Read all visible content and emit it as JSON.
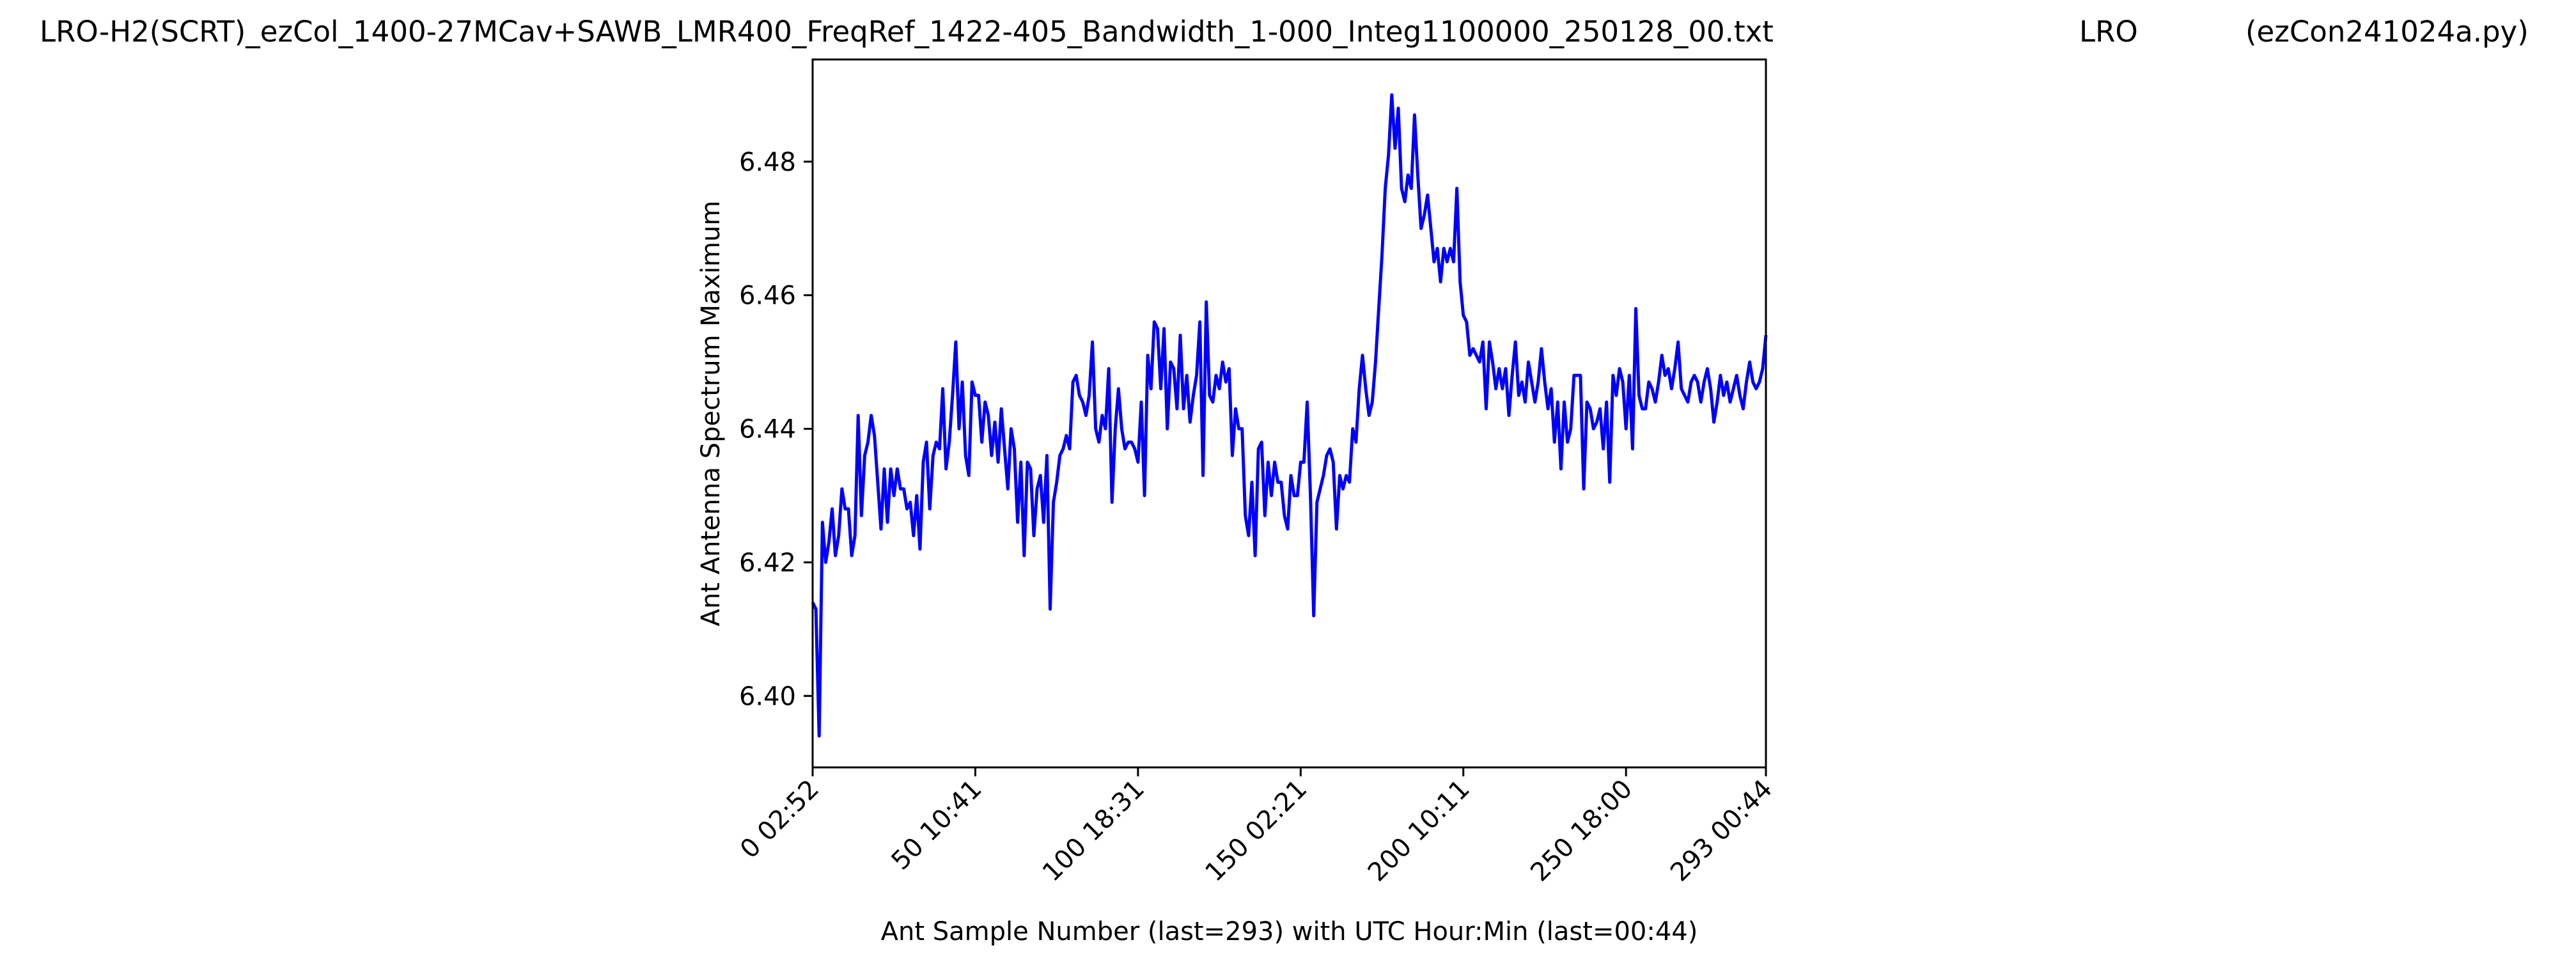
{
  "titles": {
    "file": "LRO-H2(SCRT)_ezCol_1400-27MCav+SAWB_LMR400_FreqRef_1422-405_Bandwidth_1-000_Integ1100000_250128_00.txt",
    "site": "LRO",
    "program": "(ezCon241024a.py)"
  },
  "colors": {
    "line": "#0000ff",
    "axes": "#000000",
    "background": "#ffffff"
  },
  "chart_data": {
    "type": "line",
    "xlabel": "Ant Sample Number (last=293) with UTC Hour:Min (last=00:44)",
    "ylabel": "Ant Antenna Spectrum Maximum",
    "xlim": [
      0,
      293
    ],
    "ylim": [
      6.3893,
      6.4953
    ],
    "x_ticks": [
      {
        "value": 0,
        "label": "0  02:52"
      },
      {
        "value": 50,
        "label": "50  10:41"
      },
      {
        "value": 100,
        "label": "100  18:31"
      },
      {
        "value": 150,
        "label": "150  02:21"
      },
      {
        "value": 200,
        "label": "200  10:11"
      },
      {
        "value": 250,
        "label": "250  18:00"
      },
      {
        "value": 293,
        "label": "293  00:44"
      }
    ],
    "y_ticks": [
      {
        "value": 6.4,
        "label": "6.40"
      },
      {
        "value": 6.42,
        "label": "6.42"
      },
      {
        "value": 6.44,
        "label": "6.44"
      },
      {
        "value": 6.46,
        "label": "6.46"
      },
      {
        "value": 6.48,
        "label": "6.48"
      }
    ],
    "grid": false,
    "legend": "none",
    "series": [
      {
        "color": "#0000ff",
        "points": [
          [
            0,
            6.414
          ],
          [
            1,
            6.413
          ],
          [
            2,
            6.394
          ],
          [
            3,
            6.426
          ],
          [
            4,
            6.42
          ],
          [
            5,
            6.423
          ],
          [
            6,
            6.428
          ],
          [
            7,
            6.421
          ],
          [
            8,
            6.424
          ],
          [
            9,
            6.431
          ],
          [
            10,
            6.428
          ],
          [
            11,
            6.428
          ],
          [
            12,
            6.421
          ],
          [
            13,
            6.424
          ],
          [
            14,
            6.442
          ],
          [
            15,
            6.427
          ],
          [
            16,
            6.436
          ],
          [
            17,
            6.438
          ],
          [
            18,
            6.442
          ],
          [
            19,
            6.439
          ],
          [
            20,
            6.432
          ],
          [
            21,
            6.425
          ],
          [
            22,
            6.434
          ],
          [
            23,
            6.426
          ],
          [
            24,
            6.434
          ],
          [
            25,
            6.43
          ],
          [
            26,
            6.434
          ],
          [
            27,
            6.431
          ],
          [
            28,
            6.431
          ],
          [
            29,
            6.428
          ],
          [
            30,
            6.429
          ],
          [
            31,
            6.424
          ],
          [
            32,
            6.43
          ],
          [
            33,
            6.422
          ],
          [
            34,
            6.435
          ],
          [
            35,
            6.438
          ],
          [
            36,
            6.428
          ],
          [
            37,
            6.436
          ],
          [
            38,
            6.438
          ],
          [
            39,
            6.437
          ],
          [
            40,
            6.446
          ],
          [
            41,
            6.434
          ],
          [
            42,
            6.438
          ],
          [
            43,
            6.445
          ],
          [
            44,
            6.453
          ],
          [
            45,
            6.44
          ],
          [
            46,
            6.447
          ],
          [
            47,
            6.436
          ],
          [
            48,
            6.433
          ],
          [
            49,
            6.447
          ],
          [
            50,
            6.445
          ],
          [
            51,
            6.445
          ],
          [
            52,
            6.438
          ],
          [
            53,
            6.444
          ],
          [
            54,
            6.442
          ],
          [
            55,
            6.436
          ],
          [
            56,
            6.441
          ],
          [
            57,
            6.435
          ],
          [
            58,
            6.443
          ],
          [
            59,
            6.437
          ],
          [
            60,
            6.431
          ],
          [
            61,
            6.44
          ],
          [
            62,
            6.437
          ],
          [
            63,
            6.426
          ],
          [
            64,
            6.435
          ],
          [
            65,
            6.421
          ],
          [
            66,
            6.435
          ],
          [
            67,
            6.434
          ],
          [
            68,
            6.424
          ],
          [
            69,
            6.431
          ],
          [
            70,
            6.433
          ],
          [
            71,
            6.426
          ],
          [
            72,
            6.436
          ],
          [
            73,
            6.413
          ],
          [
            74,
            6.429
          ],
          [
            75,
            6.432
          ],
          [
            76,
            6.436
          ],
          [
            77,
            6.437
          ],
          [
            78,
            6.439
          ],
          [
            79,
            6.437
          ],
          [
            80,
            6.447
          ],
          [
            81,
            6.448
          ],
          [
            82,
            6.445
          ],
          [
            83,
            6.444
          ],
          [
            84,
            6.442
          ],
          [
            85,
            6.445
          ],
          [
            86,
            6.453
          ],
          [
            87,
            6.44
          ],
          [
            88,
            6.438
          ],
          [
            89,
            6.442
          ],
          [
            90,
            6.44
          ],
          [
            91,
            6.449
          ],
          [
            92,
            6.429
          ],
          [
            93,
            6.44
          ],
          [
            94,
            6.446
          ],
          [
            95,
            6.44
          ],
          [
            96,
            6.437
          ],
          [
            97,
            6.438
          ],
          [
            98,
            6.438
          ],
          [
            99,
            6.437
          ],
          [
            100,
            6.435
          ],
          [
            101,
            6.444
          ],
          [
            102,
            6.43
          ],
          [
            103,
            6.451
          ],
          [
            104,
            6.446
          ],
          [
            105,
            6.456
          ],
          [
            106,
            6.455
          ],
          [
            107,
            6.446
          ],
          [
            108,
            6.455
          ],
          [
            109,
            6.44
          ],
          [
            110,
            6.45
          ],
          [
            111,
            6.449
          ],
          [
            112,
            6.443
          ],
          [
            113,
            6.454
          ],
          [
            114,
            6.443
          ],
          [
            115,
            6.448
          ],
          [
            116,
            6.441
          ],
          [
            117,
            6.445
          ],
          [
            118,
            6.448
          ],
          [
            119,
            6.456
          ],
          [
            120,
            6.433
          ],
          [
            121,
            6.459
          ],
          [
            122,
            6.445
          ],
          [
            123,
            6.444
          ],
          [
            124,
            6.448
          ],
          [
            125,
            6.446
          ],
          [
            126,
            6.45
          ],
          [
            127,
            6.447
          ],
          [
            128,
            6.449
          ],
          [
            129,
            6.436
          ],
          [
            130,
            6.443
          ],
          [
            131,
            6.44
          ],
          [
            132,
            6.44
          ],
          [
            133,
            6.427
          ],
          [
            134,
            6.424
          ],
          [
            135,
            6.432
          ],
          [
            136,
            6.421
          ],
          [
            137,
            6.437
          ],
          [
            138,
            6.438
          ],
          [
            139,
            6.427
          ],
          [
            140,
            6.435
          ],
          [
            141,
            6.43
          ],
          [
            142,
            6.435
          ],
          [
            143,
            6.432
          ],
          [
            144,
            6.432
          ],
          [
            145,
            6.427
          ],
          [
            146,
            6.425
          ],
          [
            147,
            6.433
          ],
          [
            148,
            6.43
          ],
          [
            149,
            6.43
          ],
          [
            150,
            6.435
          ],
          [
            151,
            6.435
          ],
          [
            152,
            6.444
          ],
          [
            153,
            6.43
          ],
          [
            154,
            6.412
          ],
          [
            155,
            6.429
          ],
          [
            156,
            6.431
          ],
          [
            157,
            6.433
          ],
          [
            158,
            6.436
          ],
          [
            159,
            6.437
          ],
          [
            160,
            6.435
          ],
          [
            161,
            6.425
          ],
          [
            162,
            6.433
          ],
          [
            163,
            6.431
          ],
          [
            164,
            6.433
          ],
          [
            165,
            6.432
          ],
          [
            166,
            6.44
          ],
          [
            167,
            6.438
          ],
          [
            168,
            6.446
          ],
          [
            169,
            6.451
          ],
          [
            170,
            6.446
          ],
          [
            171,
            6.442
          ],
          [
            172,
            6.444
          ],
          [
            173,
            6.45
          ],
          [
            174,
            6.458
          ],
          [
            175,
            6.466
          ],
          [
            176,
            6.476
          ],
          [
            177,
            6.481
          ],
          [
            178,
            6.49
          ],
          [
            179,
            6.482
          ],
          [
            180,
            6.488
          ],
          [
            181,
            6.476
          ],
          [
            182,
            6.474
          ],
          [
            183,
            6.478
          ],
          [
            184,
            6.476
          ],
          [
            185,
            6.487
          ],
          [
            186,
            6.478
          ],
          [
            187,
            6.47
          ],
          [
            188,
            6.472
          ],
          [
            189,
            6.475
          ],
          [
            190,
            6.47
          ],
          [
            191,
            6.465
          ],
          [
            192,
            6.467
          ],
          [
            193,
            6.462
          ],
          [
            194,
            6.467
          ],
          [
            195,
            6.465
          ],
          [
            196,
            6.467
          ],
          [
            197,
            6.465
          ],
          [
            198,
            6.476
          ],
          [
            199,
            6.462
          ],
          [
            200,
            6.457
          ],
          [
            201,
            6.456
          ],
          [
            202,
            6.451
          ],
          [
            203,
            6.452
          ],
          [
            204,
            6.451
          ],
          [
            205,
            6.45
          ],
          [
            206,
            6.453
          ],
          [
            207,
            6.443
          ],
          [
            208,
            6.453
          ],
          [
            209,
            6.45
          ],
          [
            210,
            6.446
          ],
          [
            211,
            6.449
          ],
          [
            212,
            6.446
          ],
          [
            213,
            6.449
          ],
          [
            214,
            6.442
          ],
          [
            215,
            6.448
          ],
          [
            216,
            6.453
          ],
          [
            217,
            6.445
          ],
          [
            218,
            6.447
          ],
          [
            219,
            6.444
          ],
          [
            220,
            6.45
          ],
          [
            221,
            6.447
          ],
          [
            222,
            6.444
          ],
          [
            223,
            6.447
          ],
          [
            224,
            6.452
          ],
          [
            225,
            6.447
          ],
          [
            226,
            6.443
          ],
          [
            227,
            6.446
          ],
          [
            228,
            6.438
          ],
          [
            229,
            6.444
          ],
          [
            230,
            6.434
          ],
          [
            231,
            6.444
          ],
          [
            232,
            6.438
          ],
          [
            233,
            6.44
          ],
          [
            234,
            6.448
          ],
          [
            235,
            6.448
          ],
          [
            236,
            6.448
          ],
          [
            237,
            6.431
          ],
          [
            238,
            6.444
          ],
          [
            239,
            6.443
          ],
          [
            240,
            6.44
          ],
          [
            241,
            6.441
          ],
          [
            242,
            6.443
          ],
          [
            243,
            6.437
          ],
          [
            244,
            6.444
          ],
          [
            245,
            6.432
          ],
          [
            246,
            6.448
          ],
          [
            247,
            6.445
          ],
          [
            248,
            6.449
          ],
          [
            249,
            6.447
          ],
          [
            250,
            6.44
          ],
          [
            251,
            6.448
          ],
          [
            252,
            6.437
          ],
          [
            253,
            6.458
          ],
          [
            254,
            6.445
          ],
          [
            255,
            6.443
          ],
          [
            256,
            6.443
          ],
          [
            257,
            6.447
          ],
          [
            258,
            6.446
          ],
          [
            259,
            6.444
          ],
          [
            260,
            6.447
          ],
          [
            261,
            6.451
          ],
          [
            262,
            6.448
          ],
          [
            263,
            6.449
          ],
          [
            264,
            6.446
          ],
          [
            265,
            6.449
          ],
          [
            266,
            6.453
          ],
          [
            267,
            6.446
          ],
          [
            268,
            6.445
          ],
          [
            269,
            6.444
          ],
          [
            270,
            6.447
          ],
          [
            271,
            6.448
          ],
          [
            272,
            6.447
          ],
          [
            273,
            6.444
          ],
          [
            274,
            6.447
          ],
          [
            275,
            6.449
          ],
          [
            276,
            6.446
          ],
          [
            277,
            6.441
          ],
          [
            278,
            6.444
          ],
          [
            279,
            6.448
          ],
          [
            280,
            6.445
          ],
          [
            281,
            6.447
          ],
          [
            282,
            6.444
          ],
          [
            283,
            6.446
          ],
          [
            284,
            6.448
          ],
          [
            285,
            6.445
          ],
          [
            286,
            6.443
          ],
          [
            287,
            6.447
          ],
          [
            288,
            6.45
          ],
          [
            289,
            6.447
          ],
          [
            290,
            6.446
          ],
          [
            291,
            6.447
          ],
          [
            292,
            6.449
          ],
          [
            293,
            6.454
          ]
        ]
      }
    ]
  }
}
